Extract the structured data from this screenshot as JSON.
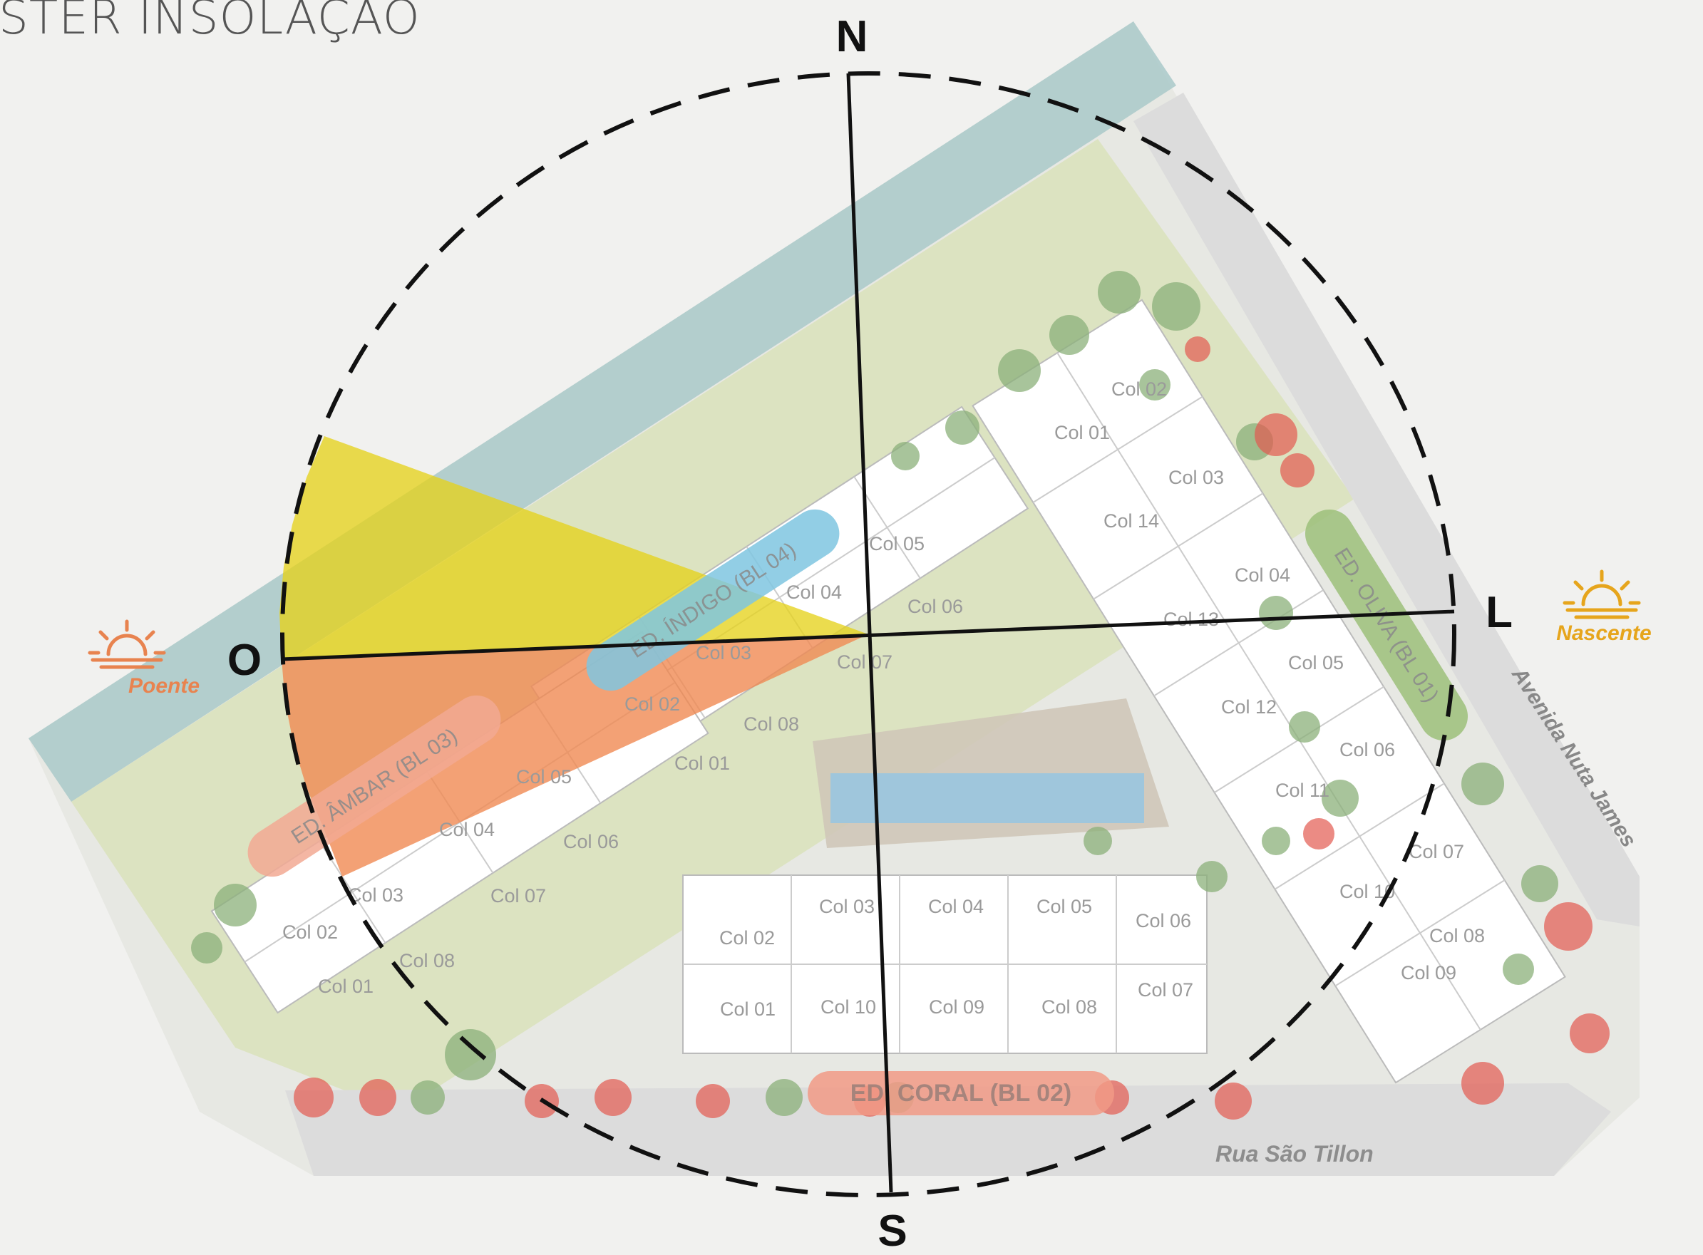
{
  "title": "STER INSOLAÇÃO",
  "compass": {
    "north": "N",
    "south": "S",
    "east": "L",
    "west": "O"
  },
  "sun": {
    "west_label": "Poente",
    "east_label": "Nascente",
    "west_color": "#e8834f",
    "east_color": "#e6a51c"
  },
  "colors": {
    "yellow_sector": "#e6d21c",
    "orange_sector": "#f08a53",
    "water": "#a9c9c9",
    "grass": "#d9e1b8",
    "tree": "#8bb07a",
    "flower": "#e25a50",
    "building": "#ffffff"
  },
  "streets": {
    "east": "Avenida Nuta James",
    "south": "Rua São Tillon"
  },
  "buildings": {
    "indigo": {
      "label": "ED. ÍNDIGO (BL 04)",
      "color": "#7fc5e0",
      "units": [
        "Col 05",
        "Col 04",
        "Col 06",
        "Col 03",
        "Col 07",
        "Col 02",
        "Col 08",
        "Col 01"
      ]
    },
    "ambar": {
      "label": "ED. ÂMBAR (BL 03)",
      "color": "#f2a993",
      "units": [
        "Col 05",
        "Col 04",
        "Col 06",
        "Col 03",
        "Col 07",
        "Col 02",
        "Col 08",
        "Col 01"
      ]
    },
    "oliva": {
      "label": "ED. OLIVA (BL 01)",
      "color": "#9cc07a",
      "units": [
        "Col 02",
        "Col 01",
        "Col 03",
        "Col 14",
        "Col 04",
        "Col 13",
        "Col 05",
        "Col 12",
        "Col 06",
        "Col 11",
        "Col 07",
        "Col 10",
        "Col 08",
        "Col 09"
      ]
    },
    "coral": {
      "label": "ED. CORAL (BL 02)",
      "color": "#f19a86",
      "units": [
        "Col 03",
        "Col 04",
        "Col 05",
        "Col 02",
        "Col 06",
        "Col 01",
        "Col 10",
        "Col 09",
        "Col 08",
        "Col 07"
      ]
    }
  }
}
